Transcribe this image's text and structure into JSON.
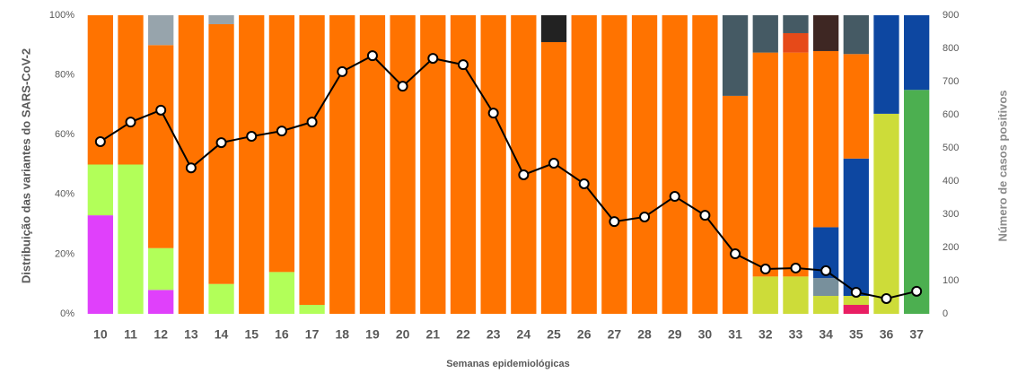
{
  "chart_data": {
    "type": "bar",
    "stacked": true,
    "xlabel": "Semanas epidemiológicas",
    "ylabel": "Distribuição das variantes do SARS-CoV-2",
    "y2label": "Número de casos positivos",
    "categories": [
      "10",
      "11",
      "12",
      "13",
      "14",
      "15",
      "16",
      "17",
      "18",
      "19",
      "20",
      "21",
      "22",
      "23",
      "24",
      "25",
      "26",
      "27",
      "28",
      "29",
      "30",
      "31",
      "32",
      "33",
      "34",
      "35",
      "36",
      "37"
    ],
    "ylim": [
      0,
      100
    ],
    "yticks": [
      {
        "value": 0,
        "label": "0%"
      },
      {
        "value": 20,
        "label": "20%"
      },
      {
        "value": 40,
        "label": "40%"
      },
      {
        "value": 60,
        "label": "60%"
      },
      {
        "value": 80,
        "label": "80%"
      },
      {
        "value": 100,
        "label": "100%"
      }
    ],
    "y2lim": [
      0,
      900
    ],
    "y2ticks": [
      0,
      100,
      200,
      300,
      400,
      500,
      600,
      700,
      800,
      900
    ],
    "series": [
      {
        "color": "#e040fb",
        "values": [
          33,
          0,
          8,
          0,
          0,
          0,
          0,
          0,
          0,
          0,
          0,
          0,
          0,
          0,
          0,
          0,
          0,
          0,
          0,
          0,
          0,
          0,
          0,
          0,
          0,
          0,
          0,
          0
        ]
      },
      {
        "color": "#e91e63",
        "values": [
          0,
          0,
          0,
          0,
          0,
          0,
          0,
          0,
          0,
          0,
          0,
          0,
          0,
          0,
          0,
          0,
          0,
          0,
          0,
          0,
          0,
          0,
          0,
          0,
          0,
          3,
          0,
          0
        ]
      },
      {
        "color": "#b2ff59",
        "values": [
          17,
          50,
          14,
          0,
          10,
          0,
          14,
          3,
          0,
          0,
          0,
          0,
          0,
          0,
          0,
          0,
          0,
          0,
          0,
          0,
          0,
          0,
          0,
          0,
          0,
          0,
          0,
          0
        ]
      },
      {
        "color": "#cddc39",
        "values": [
          0,
          0,
          0,
          0,
          0,
          0,
          0,
          0,
          0,
          0,
          0,
          0,
          0,
          0,
          0,
          0,
          0,
          0,
          0,
          0,
          0,
          0,
          12.5,
          12.5,
          6,
          3,
          67,
          0
        ]
      },
      {
        "color": "#4caf50",
        "values": [
          0,
          0,
          0,
          0,
          0,
          0,
          0,
          0,
          0,
          0,
          0,
          0,
          0,
          0,
          0,
          0,
          0,
          0,
          0,
          0,
          0,
          0,
          0,
          0,
          0,
          0,
          0,
          75
        ]
      },
      {
        "color": "#78909c",
        "values": [
          0,
          0,
          0,
          0,
          0,
          0,
          0,
          0,
          0,
          0,
          0,
          0,
          0,
          0,
          0,
          0,
          0,
          0,
          0,
          0,
          0,
          0,
          0,
          0,
          6,
          0,
          0,
          0
        ]
      },
      {
        "color": "#0d47a1",
        "values": [
          0,
          0,
          0,
          0,
          0,
          0,
          0,
          0,
          0,
          0,
          0,
          0,
          0,
          0,
          0,
          0,
          0,
          0,
          0,
          0,
          0,
          0,
          0,
          0,
          17,
          46,
          33,
          25
        ]
      },
      {
        "color": "#ff7300",
        "values": [
          50,
          50,
          68,
          100,
          87,
          100,
          86,
          97,
          100,
          100,
          100,
          100,
          100,
          100,
          100,
          91,
          100,
          100,
          100,
          100,
          100,
          73,
          75,
          75,
          59,
          35,
          0,
          0
        ]
      },
      {
        "color": "#e64a19",
        "values": [
          0,
          0,
          0,
          0,
          0,
          0,
          0,
          0,
          0,
          0,
          0,
          0,
          0,
          0,
          0,
          0,
          0,
          0,
          0,
          0,
          0,
          0,
          0,
          6.5,
          0,
          0,
          0,
          0
        ]
      },
      {
        "color": "#97a4ac",
        "values": [
          0,
          0,
          10,
          0,
          3,
          0,
          0,
          0,
          0,
          0,
          0,
          0,
          0,
          0,
          0,
          0,
          0,
          0,
          0,
          0,
          0,
          0,
          0,
          0,
          0,
          0,
          0,
          0
        ]
      },
      {
        "color": "#222222",
        "values": [
          0,
          0,
          0,
          0,
          0,
          0,
          0,
          0,
          0,
          0,
          0,
          0,
          0,
          0,
          0,
          9,
          0,
          0,
          0,
          0,
          0,
          0,
          0,
          0,
          0,
          0,
          0,
          0
        ]
      },
      {
        "color": "#455a64",
        "values": [
          0,
          0,
          0,
          0,
          0,
          0,
          0,
          0,
          0,
          0,
          0,
          0,
          0,
          0,
          0,
          0,
          0,
          0,
          0,
          0,
          0,
          27,
          12.5,
          6,
          0,
          13,
          0,
          0
        ]
      },
      {
        "color": "#3e2723",
        "values": [
          0,
          0,
          0,
          0,
          0,
          0,
          0,
          0,
          0,
          0,
          0,
          0,
          0,
          0,
          0,
          0,
          0,
          0,
          0,
          0,
          0,
          0,
          0,
          0,
          12,
          0,
          0,
          0
        ]
      },
      {
        "type": "line",
        "axis": "y2",
        "color": "#000000",
        "values": [
          519,
          578,
          614,
          440,
          516,
          535,
          551,
          578,
          730,
          778,
          686,
          770,
          751,
          605,
          419,
          454,
          392,
          278,
          292,
          354,
          297,
          181,
          135,
          138,
          130,
          65,
          46,
          68
        ]
      }
    ]
  }
}
